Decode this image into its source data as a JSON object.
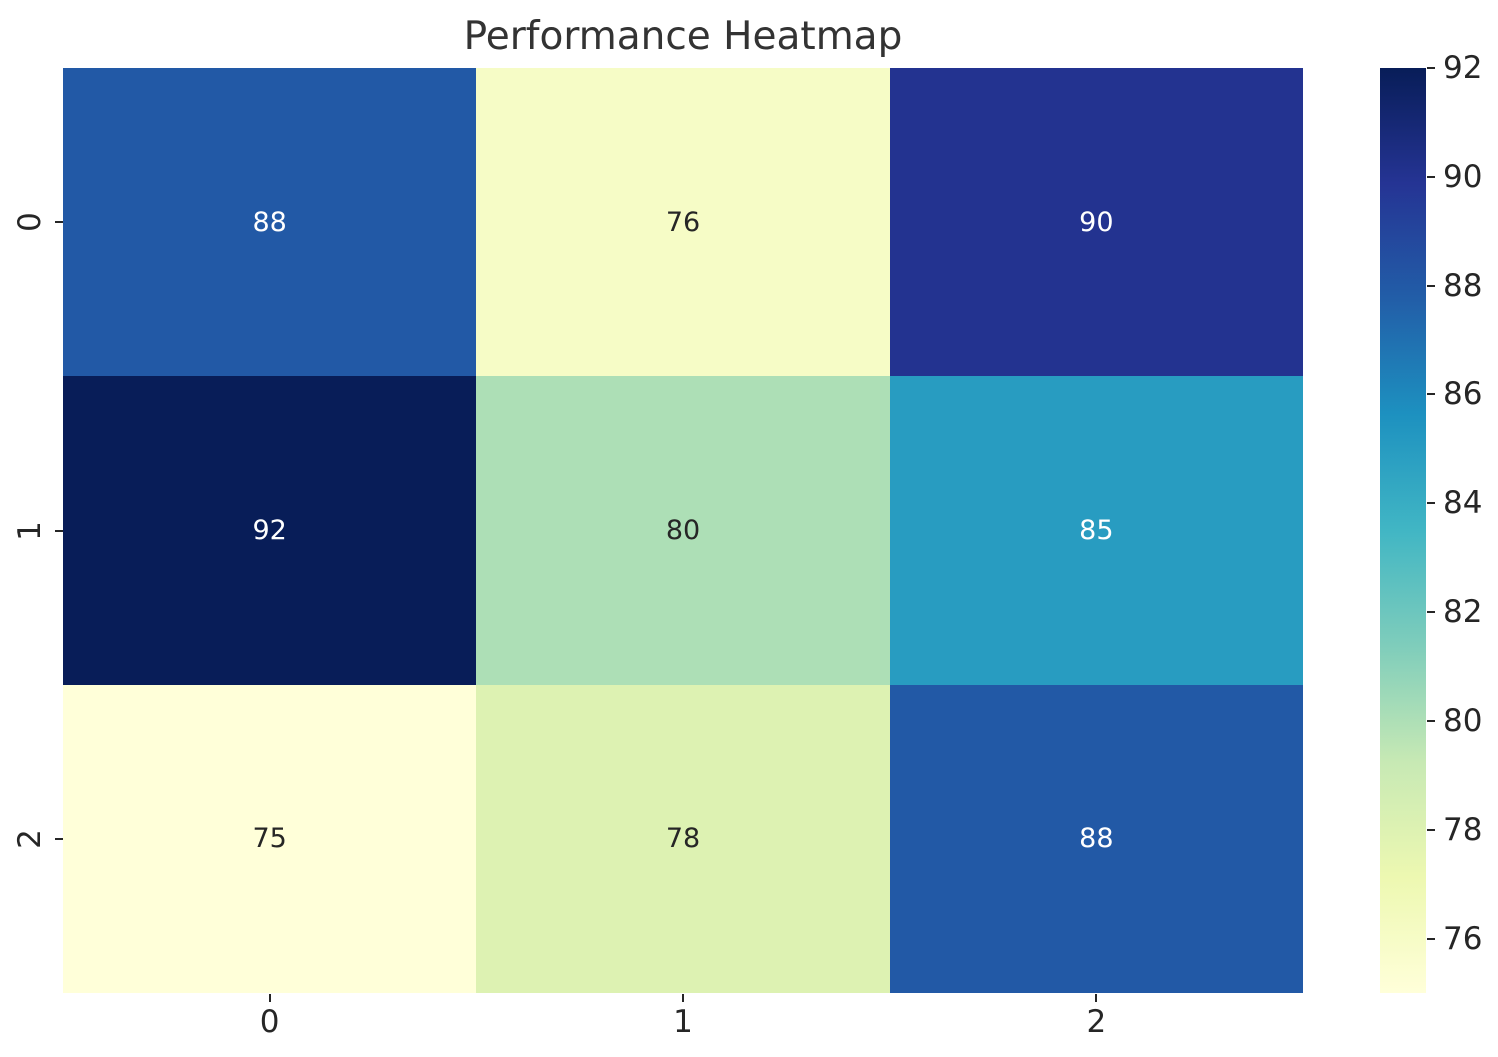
{
  "chart_data": {
    "type": "heatmap",
    "title": "Performance Heatmap",
    "x_labels": [
      "0",
      "1",
      "2"
    ],
    "y_labels": [
      "0",
      "1",
      "2"
    ],
    "values": [
      [
        88,
        76,
        90
      ],
      [
        92,
        80,
        85
      ],
      [
        75,
        78,
        88
      ]
    ],
    "cell_colors": [
      [
        "#2259a6",
        "#f6fcc6",
        "#233390"
      ],
      [
        "#081d58",
        "#addfb6",
        "#289cc1"
      ],
      [
        "#ffffd9",
        "#ddf2b2",
        "#2259a6"
      ]
    ],
    "cell_text_colors": [
      [
        "#ffffff",
        "#262626",
        "#ffffff"
      ],
      [
        "#ffffff",
        "#262626",
        "#ffffff"
      ],
      [
        "#262626",
        "#262626",
        "#ffffff"
      ]
    ],
    "colormap": "YlGnBu",
    "vmin": 75,
    "vmax": 92,
    "colorbar": {
      "ticks": [
        "92",
        "90",
        "88",
        "86",
        "84",
        "82",
        "80",
        "78",
        "76"
      ],
      "tick_values": [
        92,
        90,
        88,
        86,
        84,
        82,
        80,
        78,
        76
      ],
      "gradient_stops_bottom_to_top": [
        "#ffffd9",
        "#edf8b1",
        "#c7e9b4",
        "#7fcdbb",
        "#41b6c4",
        "#1d91c0",
        "#225ea8",
        "#253494",
        "#081d58"
      ]
    },
    "colors": {
      "title": "#333333",
      "tick_label": "#262626",
      "background": "#ffffff"
    }
  }
}
